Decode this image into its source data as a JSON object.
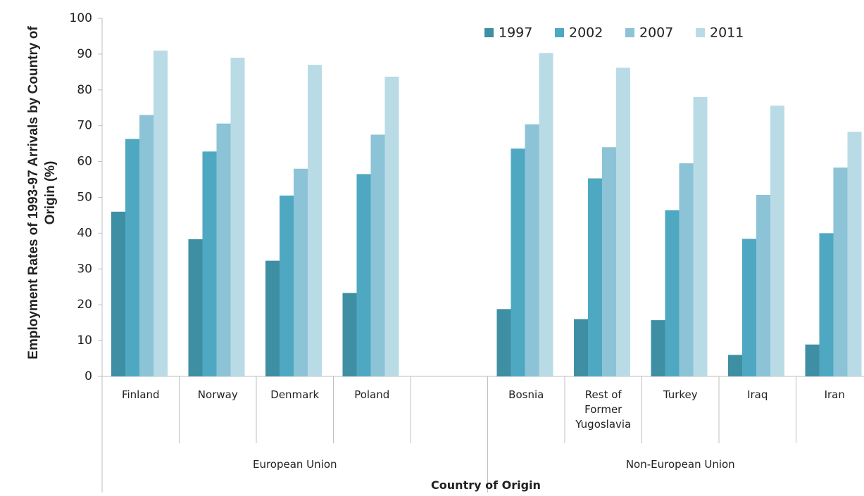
{
  "chart_data": {
    "type": "bar",
    "y_label": "Employment Rates of 1993-97 Arrivals by Country of Origin (%)",
    "x_label": "Country of Origin",
    "categories": [
      "Finland",
      "Norway",
      "Denmark",
      "Poland",
      null,
      "Bosnia",
      "Rest of Former Yugoslavia",
      "Turkey",
      "Iraq",
      "Iran"
    ],
    "groups": [
      {
        "name": "European Union",
        "span": 5
      },
      {
        "name": "Non-European Union",
        "span": 5
      }
    ],
    "series": [
      {
        "name": "1997",
        "color": "#3f8fa4",
        "values": [
          46,
          38.3,
          32.3,
          23.3,
          null,
          18.8,
          16,
          15.7,
          6,
          8.9
        ]
      },
      {
        "name": "2002",
        "color": "#4fa8c1",
        "values": [
          66.3,
          62.8,
          50.5,
          56.5,
          null,
          63.6,
          55.3,
          46.4,
          38.4,
          40
        ]
      },
      {
        "name": "2007",
        "color": "#8cc3d6",
        "values": [
          73,
          70.6,
          58,
          67.5,
          null,
          70.4,
          64,
          59.5,
          50.7,
          58.3
        ]
      },
      {
        "name": "2011",
        "color": "#b9dbe6",
        "values": [
          91,
          89,
          87,
          83.7,
          null,
          90.3,
          86.2,
          78,
          75.6,
          68.3
        ]
      }
    ],
    "ylim": [
      0,
      100
    ],
    "yticks": [
      0,
      10,
      20,
      30,
      40,
      50,
      60,
      70,
      80,
      90,
      100
    ],
    "grid": false,
    "legend": "upper right"
  }
}
